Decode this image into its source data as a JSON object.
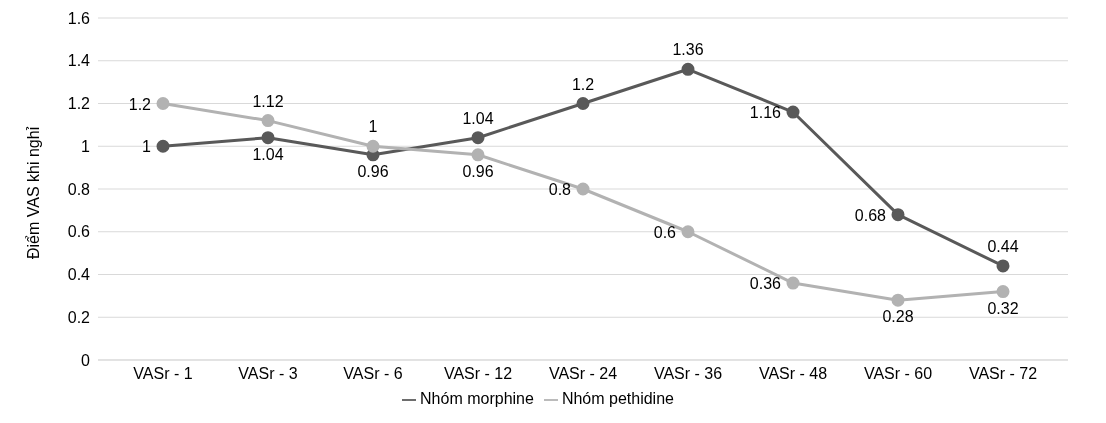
{
  "chart_data": {
    "type": "line",
    "ylabel": "Điểm VAS khi nghỉ",
    "categories": [
      "VASr - 1",
      "VASr - 3",
      "VASr - 6",
      "VASr - 12",
      "VASr - 24",
      "VASr - 36",
      "VASr - 48",
      "VASr - 60",
      "VASr - 72"
    ],
    "series": [
      {
        "name": "Nhóm morphine",
        "color": "#595959",
        "values": [
          1,
          1.04,
          0.96,
          1.04,
          1.2,
          1.36,
          1.16,
          0.68,
          0.44
        ]
      },
      {
        "name": "Nhóm pethidine",
        "color": "#b2b2b2",
        "values": [
          1.2,
          1.12,
          1,
          0.96,
          0.8,
          0.6,
          0.36,
          0.28,
          0.32
        ]
      }
    ],
    "ylim": [
      0,
      1.6
    ],
    "yticks": [
      0,
      0.2,
      0.4,
      0.6,
      0.8,
      1,
      1.2,
      1.4,
      1.6
    ],
    "grid": "y",
    "legend": "bottom",
    "marker": "circle",
    "line_style": "solid",
    "data_labels": true
  }
}
